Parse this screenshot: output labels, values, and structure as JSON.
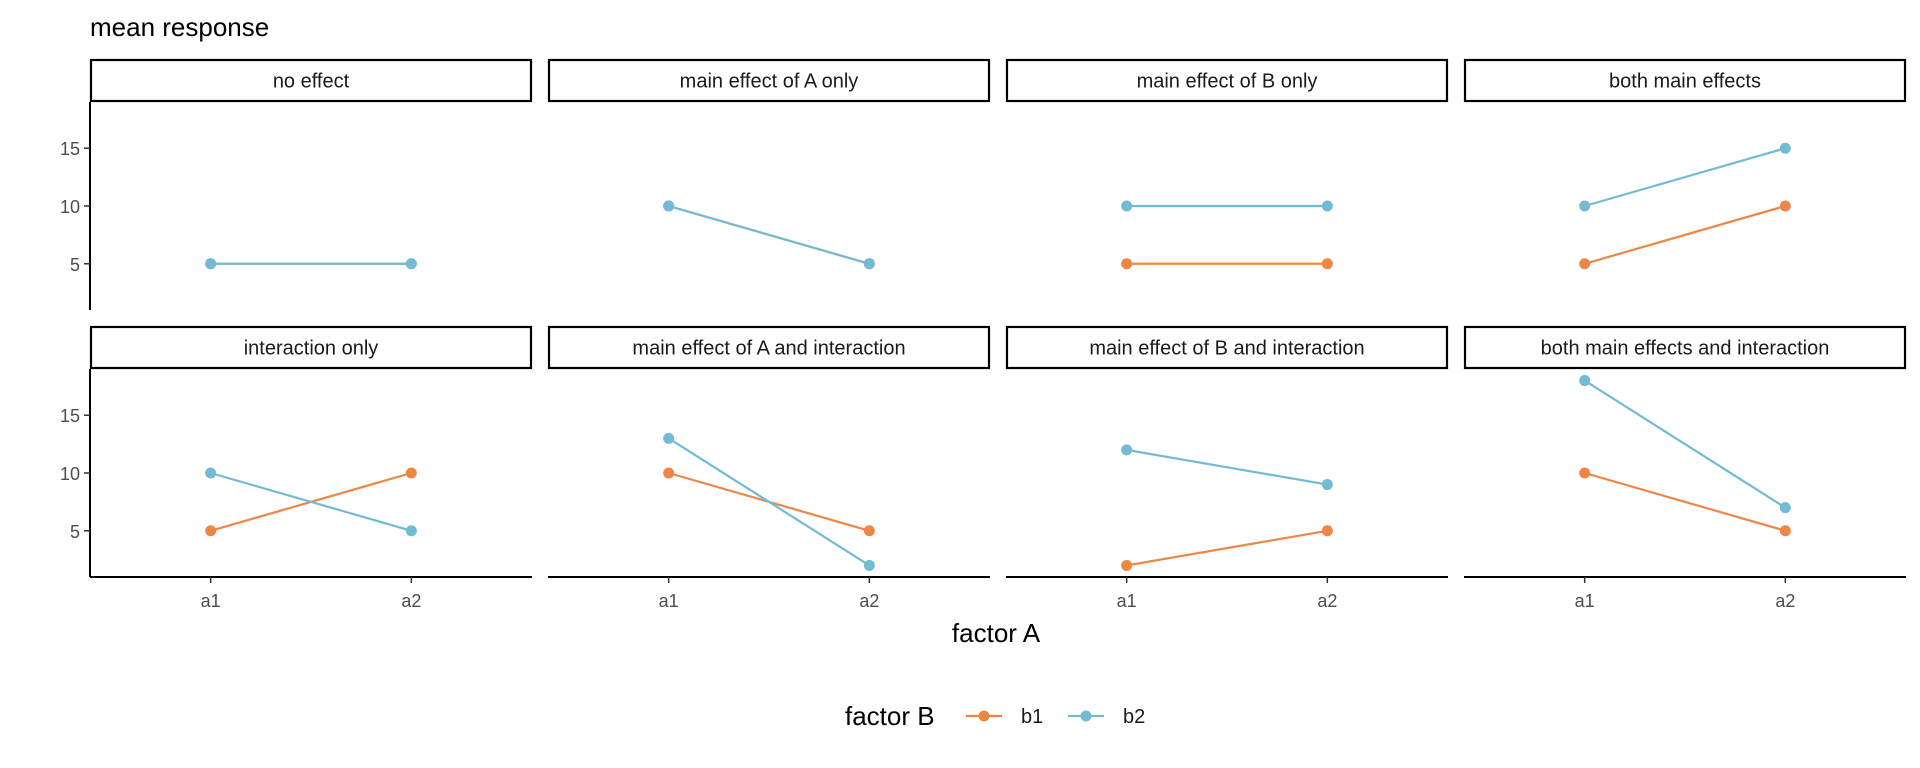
{
  "chart_data": {
    "type": "line",
    "ylabel": "mean response",
    "xlabel": "factor A",
    "categories": [
      "a1",
      "a2"
    ],
    "ylim": [
      1,
      19
    ],
    "yticks": [
      5,
      10,
      15
    ],
    "legend": {
      "title": "factor B",
      "position": "bottom",
      "entries": [
        {
          "name": "b1",
          "color": "#EE8646"
        },
        {
          "name": "b2",
          "color": "#73BBD4"
        }
      ]
    },
    "panels": [
      {
        "title": "no effect",
        "series": [
          {
            "name": "b1",
            "values": [
              5,
              5
            ]
          },
          {
            "name": "b2",
            "values": [
              5,
              5
            ]
          }
        ]
      },
      {
        "title": "main effect of A only",
        "series": [
          {
            "name": "b1",
            "values": [
              10,
              5
            ]
          },
          {
            "name": "b2",
            "values": [
              10,
              5
            ]
          }
        ]
      },
      {
        "title": "main effect of B only",
        "series": [
          {
            "name": "b1",
            "values": [
              5,
              5
            ]
          },
          {
            "name": "b2",
            "values": [
              10,
              10
            ]
          }
        ]
      },
      {
        "title": "both main effects",
        "series": [
          {
            "name": "b1",
            "values": [
              5,
              10
            ]
          },
          {
            "name": "b2",
            "values": [
              10,
              15
            ]
          }
        ]
      },
      {
        "title": "interaction only",
        "series": [
          {
            "name": "b1",
            "values": [
              5,
              10
            ]
          },
          {
            "name": "b2",
            "values": [
              10,
              5
            ]
          }
        ]
      },
      {
        "title": "main effect of A and interaction",
        "series": [
          {
            "name": "b1",
            "values": [
              10,
              5
            ]
          },
          {
            "name": "b2",
            "values": [
              13,
              2
            ]
          }
        ]
      },
      {
        "title": "main effect of B and interaction",
        "series": [
          {
            "name": "b1",
            "values": [
              2,
              5
            ]
          },
          {
            "name": "b2",
            "values": [
              12,
              9
            ]
          }
        ]
      },
      {
        "title": "both main effects and interaction",
        "series": [
          {
            "name": "b1",
            "values": [
              10,
              5
            ]
          },
          {
            "name": "b2",
            "values": [
              18,
              7
            ]
          }
        ]
      }
    ]
  }
}
